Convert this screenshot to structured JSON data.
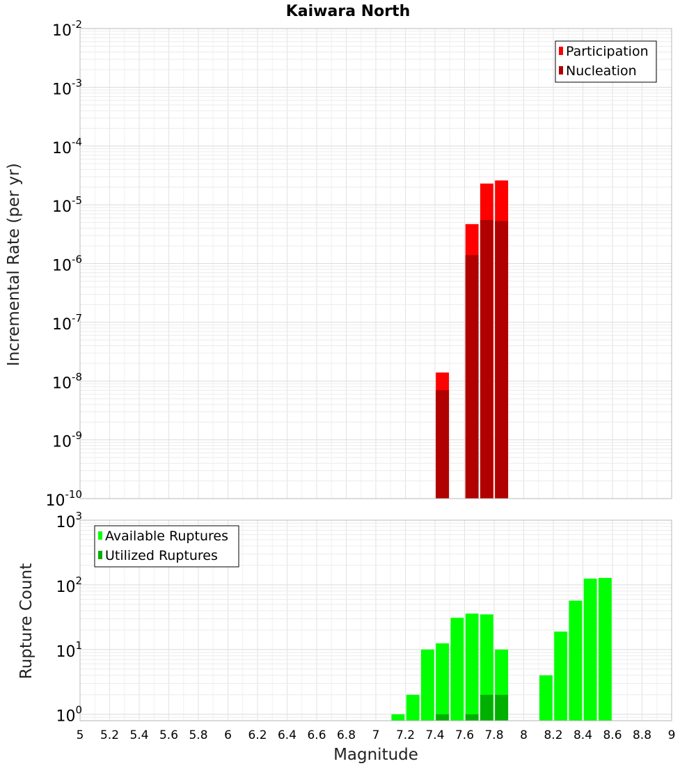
{
  "chart_data": {
    "title": "Kaiwara North",
    "xlabel": "Magnitude",
    "xlim": [
      5,
      9
    ],
    "xticks": [
      "5",
      "5.2",
      "5.4",
      "5.6",
      "5.8",
      "6",
      "6.2",
      "6.4",
      "6.6",
      "6.8",
      "7",
      "7.2",
      "7.4",
      "7.6",
      "7.8",
      "8",
      "8.2",
      "8.4",
      "8.6",
      "8.8",
      "9"
    ],
    "bin_width": 0.1,
    "charts": [
      {
        "type": "bar",
        "yscale": "log",
        "ylabel": "Incremental Rate (per yr)",
        "ylim_exp": [
          -10,
          -2
        ],
        "yticks": [
          {
            "base": "10",
            "exp": "-2"
          },
          {
            "base": "10",
            "exp": "-3"
          },
          {
            "base": "10",
            "exp": "-4"
          },
          {
            "base": "10",
            "exp": "-5"
          },
          {
            "base": "10",
            "exp": "-6"
          },
          {
            "base": "10",
            "exp": "-7"
          },
          {
            "base": "10",
            "exp": "-8"
          },
          {
            "base": "10",
            "exp": "-9"
          },
          {
            "base": "10",
            "exp": "-10"
          }
        ],
        "legend": {
          "position": "top-right",
          "entries": [
            "Participation",
            "Nucleation"
          ]
        },
        "series": [
          {
            "name": "Participation",
            "color": "#ff0000",
            "points": [
              {
                "x": 7.45,
                "y": 1.4e-08
              },
              {
                "x": 7.65,
                "y": 4.7e-06
              },
              {
                "x": 7.75,
                "y": 2.3e-05
              },
              {
                "x": 7.85,
                "y": 2.6e-05
              }
            ]
          },
          {
            "name": "Nucleation",
            "color": "#b00000",
            "points": [
              {
                "x": 7.45,
                "y": 7e-09
              },
              {
                "x": 7.65,
                "y": 1.4e-06
              },
              {
                "x": 7.75,
                "y": 5.5e-06
              },
              {
                "x": 7.85,
                "y": 5.3e-06
              }
            ]
          }
        ]
      },
      {
        "type": "bar",
        "yscale": "log",
        "ylabel": "Rupture Count",
        "ylim_exp": [
          -0.1,
          3
        ],
        "yticks": [
          {
            "base": "10",
            "exp": "3"
          },
          {
            "base": "10",
            "exp": "2"
          },
          {
            "base": "10",
            "exp": "1"
          },
          {
            "base": "10",
            "exp": "0"
          }
        ],
        "legend": {
          "position": "top-left",
          "entries": [
            "Available Ruptures",
            "Utilized Ruptures"
          ]
        },
        "series": [
          {
            "name": "Available Ruptures",
            "color": "#00ff00",
            "points": [
              {
                "x": 7.15,
                "y": 1
              },
              {
                "x": 7.25,
                "y": 2
              },
              {
                "x": 7.35,
                "y": 10
              },
              {
                "x": 7.45,
                "y": 12.5
              },
              {
                "x": 7.55,
                "y": 31
              },
              {
                "x": 7.65,
                "y": 36
              },
              {
                "x": 7.75,
                "y": 35
              },
              {
                "x": 7.85,
                "y": 10
              },
              {
                "x": 8.15,
                "y": 4
              },
              {
                "x": 8.25,
                "y": 19
              },
              {
                "x": 8.35,
                "y": 57
              },
              {
                "x": 8.45,
                "y": 125
              },
              {
                "x": 8.55,
                "y": 128
              }
            ]
          },
          {
            "name": "Utilized Ruptures",
            "color": "#00b000",
            "points": [
              {
                "x": 7.45,
                "y": 1
              },
              {
                "x": 7.65,
                "y": 1
              },
              {
                "x": 7.75,
                "y": 2
              },
              {
                "x": 7.85,
                "y": 2
              }
            ]
          }
        ]
      }
    ]
  }
}
